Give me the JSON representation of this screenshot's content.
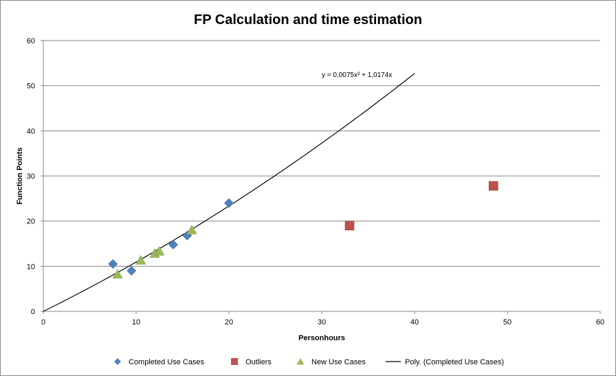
{
  "chart_data": {
    "type": "scatter",
    "title": "FP Calculation and time estimation",
    "xlabel": "Personhours",
    "ylabel": "Function Points",
    "xlim": [
      0,
      60
    ],
    "ylim": [
      0,
      60
    ],
    "x_ticks": [
      0,
      10,
      20,
      30,
      40,
      50,
      60
    ],
    "y_ticks": [
      0,
      10,
      20,
      30,
      40,
      50,
      60
    ],
    "grid": "horizontal",
    "legend_position": "bottom",
    "series": [
      {
        "name": "Completed Use Cases",
        "marker": "diamond",
        "color": "#4F81BD",
        "points": [
          {
            "x": 7.5,
            "y": 10.5
          },
          {
            "x": 9.5,
            "y": 9
          },
          {
            "x": 14,
            "y": 14.8
          },
          {
            "x": 15.5,
            "y": 16.8
          },
          {
            "x": 20,
            "y": 24
          }
        ]
      },
      {
        "name": "Outliers",
        "marker": "square",
        "color": "#C0504D",
        "points": [
          {
            "x": 33,
            "y": 19
          },
          {
            "x": 48.5,
            "y": 27.8
          }
        ]
      },
      {
        "name": "New Use Cases",
        "marker": "triangle",
        "color": "#9BBB59",
        "points": [
          {
            "x": 8,
            "y": 8.2
          },
          {
            "x": 10.5,
            "y": 11.3
          },
          {
            "x": 12,
            "y": 12.8
          },
          {
            "x": 12.5,
            "y": 13.3
          },
          {
            "x": 16,
            "y": 18
          }
        ]
      }
    ],
    "trendline": {
      "name": "Poly. (Completed Use Cases)",
      "type": "polynomial",
      "a": 0.0075,
      "b": 1.0174,
      "x_range": [
        0,
        40
      ],
      "equation": "y = 0,0075x² + 1,0174x",
      "color": "#000000"
    }
  }
}
